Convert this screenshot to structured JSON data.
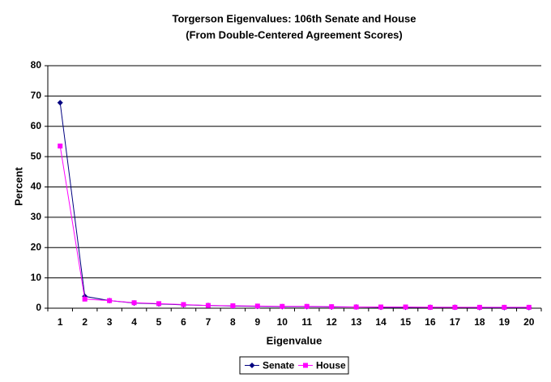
{
  "chart_data": {
    "type": "line",
    "title": "Torgerson Eigenvalues:  106th Senate and House",
    "subtitle": "(From Double-Centered Agreement Scores)",
    "x_label": "Eigenvalue",
    "y_label": "Percent",
    "categories": [
      "1",
      "2",
      "3",
      "4",
      "5",
      "6",
      "7",
      "8",
      "9",
      "10",
      "11",
      "12",
      "13",
      "14",
      "15",
      "16",
      "17",
      "18",
      "19",
      "20"
    ],
    "series": [
      {
        "name": "Senate",
        "color": "#000080",
        "marker": "diamond",
        "values": [
          67.8,
          3.9,
          2.5,
          1.7,
          1.4,
          1.1,
          0.9,
          0.7,
          0.6,
          0.5,
          0.5,
          0.4,
          0.4,
          0.3,
          0.3,
          0.3,
          0.3,
          0.2,
          0.2,
          0.2
        ]
      },
      {
        "name": "House",
        "color": "#ff00ff",
        "marker": "square",
        "values": [
          53.5,
          3.0,
          2.5,
          1.8,
          1.5,
          1.2,
          0.9,
          0.8,
          0.7,
          0.6,
          0.6,
          0.5,
          0.4,
          0.4,
          0.4,
          0.3,
          0.3,
          0.3,
          0.3,
          0.3
        ]
      }
    ],
    "ylim": [
      0,
      80
    ],
    "yticks": [
      0,
      10,
      20,
      30,
      40,
      50,
      60,
      70,
      80
    ],
    "grid": true,
    "legend": "bottom"
  }
}
